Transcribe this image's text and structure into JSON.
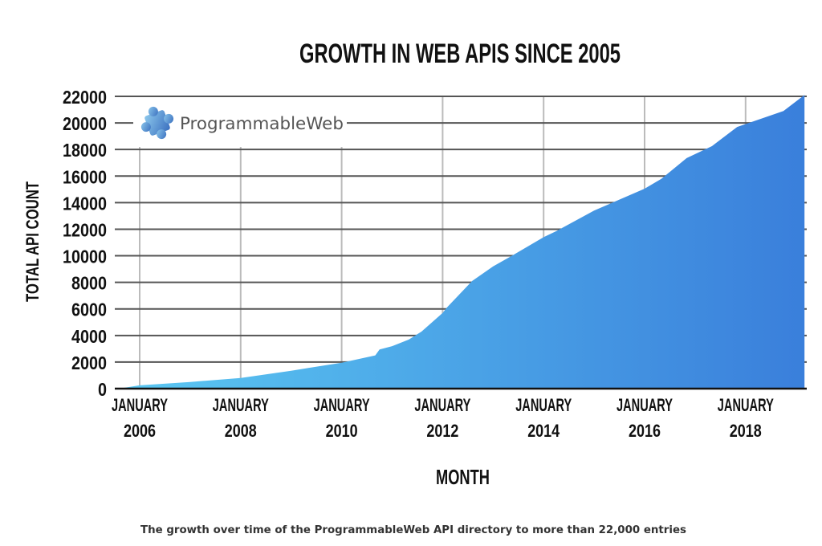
{
  "chart_data": {
    "type": "area",
    "title": "GROWTH IN WEB APIS SINCE 2005",
    "xlabel": "MONTH",
    "ylabel": "TOTAL API COUNT",
    "ylim": [
      0,
      22000
    ],
    "yticks": [
      "0",
      "2000",
      "4000",
      "6000",
      "8000",
      "10000",
      "12000",
      "14000",
      "16000",
      "18000",
      "20000",
      "22000"
    ],
    "xticks": [
      {
        "month": "JANUARY",
        "year": "2006",
        "date": 2006
      },
      {
        "month": "JANUARY",
        "year": "2008",
        "date": 2008
      },
      {
        "month": "JANUARY",
        "year": "2010",
        "date": 2010
      },
      {
        "month": "JANUARY",
        "year": "2012",
        "date": 2012
      },
      {
        "month": "JANUARY",
        "year": "2014",
        "date": 2014
      },
      {
        "month": "JANUARY",
        "year": "2016",
        "date": 2016
      },
      {
        "month": "JANUARY",
        "year": "2018",
        "date": 2018
      }
    ],
    "grid": true,
    "legend": "none",
    "colors": {
      "fill_start": "#5bc8f2",
      "fill_end": "#3a7fdb",
      "grid": "#555555"
    },
    "x": [
      "2005-08",
      "2006-01",
      "2007-01",
      "2008-01",
      "2009-01",
      "2010-01",
      "2010-09",
      "2010-10",
      "2011-01",
      "2011-05",
      "2011-08",
      "2012-01",
      "2012-02",
      "2012-05",
      "2012-08",
      "2013-01",
      "2013-06",
      "2014-01",
      "2014-04",
      "2015-01",
      "2016-01",
      "2016-05",
      "2016-11",
      "2017-05",
      "2017-11",
      "2018-10",
      "2019-03"
    ],
    "values": [
      0,
      250,
      500,
      800,
      1350,
      1950,
      2500,
      2950,
      3200,
      3700,
      4300,
      5700,
      6100,
      7100,
      8100,
      9200,
      10100,
      11400,
      11850,
      13400,
      15050,
      15800,
      17350,
      18250,
      19700,
      20900,
      22100
    ]
  },
  "logo": {
    "text": "ProgrammableWeb",
    "icon": "puzzle-piece-icon"
  },
  "caption": "The growth over time of the ProgrammableWeb API directory to more than 22,000 entries"
}
